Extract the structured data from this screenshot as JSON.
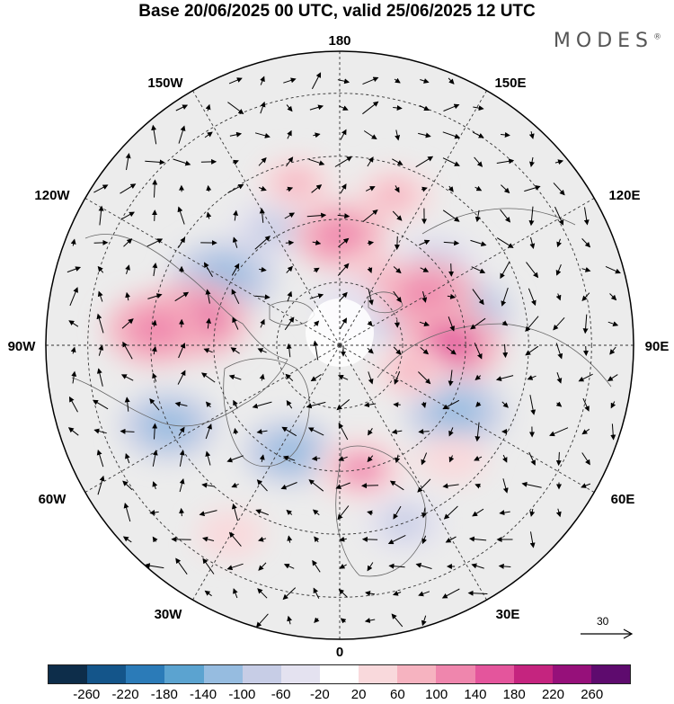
{
  "title": "Base 20/06/2025 00 UTC, valid 25/06/2025 12 UTC",
  "brand": "MODES",
  "brand_mark": "®",
  "meridian_labels": {
    "top": "180",
    "top_left": "150W",
    "top_right": "150E",
    "upper_left": "120W",
    "upper_right": "120E",
    "left": "90W",
    "right": "90E",
    "lower_left": "60W",
    "lower_right": "60E",
    "bottom_left": "30W",
    "bottom_right": "30E",
    "bottom": "0"
  },
  "reference_vector": {
    "value": "30",
    "icon": "arrow-right-icon"
  },
  "colorbar": {
    "ticks": [
      "-260",
      "-220",
      "-180",
      "-140",
      "-100",
      "-60",
      "-20",
      "20",
      "60",
      "100",
      "140",
      "180",
      "220",
      "260"
    ],
    "colors": [
      "#0d2d4a",
      "#14558a",
      "#2b7bb8",
      "#5ba3d0",
      "#96bce0",
      "#c7cde6",
      "#e4e2f0",
      "#ffffff",
      "#f9d9dc",
      "#f6b3c0",
      "#ef86ad",
      "#e4559c",
      "#c5247f",
      "#96107a",
      "#5e0b6e"
    ]
  },
  "anomalies": [
    {
      "lon": -150,
      "lat": 58,
      "value": -90
    },
    {
      "lon": 160,
      "lat": 52,
      "value": 70
    },
    {
      "lon": -165,
      "lat": 50,
      "value": 60
    },
    {
      "lon": 120,
      "lat": 78,
      "value": -70
    },
    {
      "lon": 180,
      "lat": 64,
      "value": 110
    },
    {
      "lon": 150,
      "lat": 72,
      "value": 80
    },
    {
      "lon": 165,
      "lat": 80,
      "value": -60
    },
    {
      "lon": -120,
      "lat": 58,
      "value": -140
    },
    {
      "lon": -100,
      "lat": 55,
      "value": 150
    },
    {
      "lon": -95,
      "lat": 46,
      "value": 130
    },
    {
      "lon": 130,
      "lat": 60,
      "value": -100
    },
    {
      "lon": 105,
      "lat": 60,
      "value": -130
    },
    {
      "lon": 120,
      "lat": 66,
      "value": 130
    },
    {
      "lon": 90,
      "lat": 64,
      "value": 150
    },
    {
      "lon": 60,
      "lat": 58,
      "value": -130
    },
    {
      "lon": -65,
      "lat": 45,
      "value": -120
    },
    {
      "lon": -25,
      "lat": 62,
      "value": -110
    },
    {
      "lon": 10,
      "lat": 60,
      "value": 100
    },
    {
      "lon": 20,
      "lat": 45,
      "value": -80
    },
    {
      "lon": -30,
      "lat": 38,
      "value": 50
    },
    {
      "lon": 45,
      "lat": 52,
      "value": 50
    },
    {
      "lon": 70,
      "lat": 72,
      "value": 60
    }
  ]
}
